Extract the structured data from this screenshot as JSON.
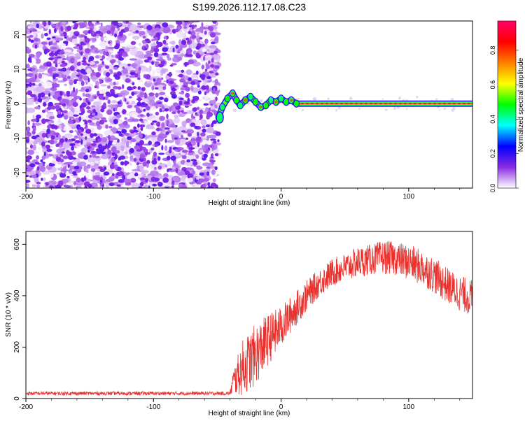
{
  "title": "S199.2026.112.17.08.C23",
  "chart_data": [
    {
      "type": "heatmap",
      "xlabel": "Height of straight line (km)",
      "ylabel": "Frequency (Hz)",
      "xlim": [
        -200,
        150
      ],
      "ylim": [
        -24.5,
        24
      ],
      "xticks": [
        -200,
        -100,
        0,
        100
      ],
      "yticks": [
        -20,
        -10,
        0,
        10,
        20
      ],
      "colorbar": {
        "label": "Normalized spectral amplitude",
        "range": [
          0,
          0.97
        ],
        "ticks": [
          0.0,
          0.2,
          0.4,
          0.6,
          0.8
        ],
        "colormap": [
          "#ffffff",
          "#8a2be2",
          "#0000ff",
          "#00ffff",
          "#00ff00",
          "#ffff00",
          "#ff7f00",
          "#ff0000",
          "#ff0066"
        ]
      },
      "regions": [
        {
          "kind": "noise",
          "x_range": [
            -200,
            -49
          ],
          "freq_range": [
            -24.5,
            24
          ],
          "amplitude": [
            0.0,
            0.25
          ]
        },
        {
          "kind": "onset",
          "x_range": [
            -49,
            -43
          ],
          "freq_range": [
            -6,
            2
          ],
          "amplitude": [
            0.3,
            0.5
          ]
        },
        {
          "kind": "signal-line",
          "x_range": [
            -43,
            150
          ],
          "freq_center": 0,
          "amplitude": [
            0.6,
            0.97
          ]
        }
      ],
      "line_path": [
        [
          -49,
          -4
        ],
        [
          -46,
          -1
        ],
        [
          -42,
          1.5
        ],
        [
          -38,
          3
        ],
        [
          -35,
          1
        ],
        [
          -32,
          -0.5
        ],
        [
          -28,
          1
        ],
        [
          -24,
          2
        ],
        [
          -20,
          0.5
        ],
        [
          -16,
          -1
        ],
        [
          -12,
          -0.5
        ],
        [
          -8,
          1
        ],
        [
          -4,
          0.5
        ],
        [
          0,
          1.5
        ],
        [
          4,
          0.5
        ],
        [
          8,
          1
        ],
        [
          12,
          0
        ],
        [
          150,
          0
        ]
      ]
    },
    {
      "type": "line",
      "xlabel": "Height of straight line (km)",
      "ylabel": "SNR (10 * v/v)",
      "xlim": [
        -200,
        150
      ],
      "ylim": [
        0,
        650
      ],
      "xticks": [
        -200,
        -100,
        0,
        100
      ],
      "yticks": [
        0,
        200,
        400,
        600
      ],
      "color": "#e8302c",
      "series": [
        {
          "x": [
            -200,
            -150,
            -100,
            -60,
            -40,
            -38,
            -30,
            -20,
            -10,
            0,
            10,
            20,
            30,
            40,
            50,
            60,
            70,
            80,
            90,
            100,
            110,
            120,
            130,
            140,
            150
          ],
          "mean": [
            20,
            20,
            20,
            20,
            20,
            60,
            120,
            170,
            230,
            280,
            340,
            400,
            450,
            490,
            510,
            530,
            540,
            550,
            545,
            530,
            510,
            480,
            440,
            410,
            390
          ],
          "spread": [
            7,
            7,
            7,
            7,
            7,
            45,
            110,
            120,
            100,
            80,
            70,
            60,
            55,
            55,
            55,
            60,
            60,
            65,
            65,
            70,
            70,
            70,
            70,
            70,
            70
          ]
        }
      ]
    }
  ]
}
